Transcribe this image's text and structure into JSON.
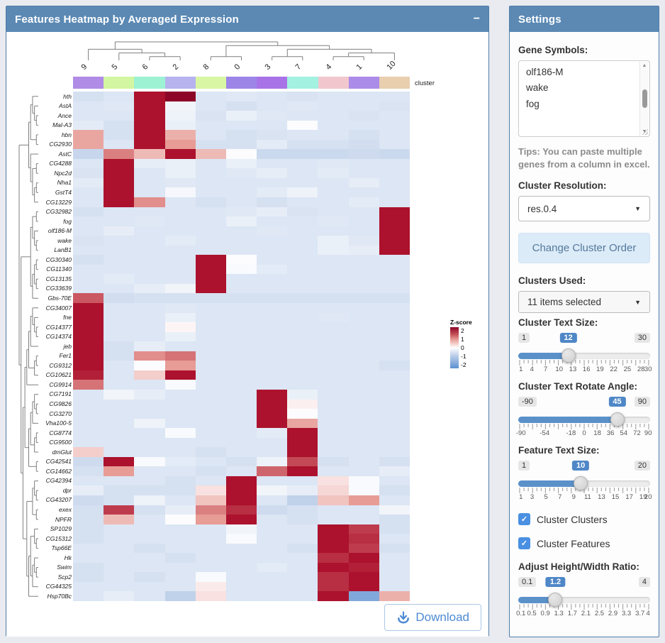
{
  "heatmap_panel": {
    "title": "Features Heatmap by Averaged Expression",
    "collapse_label": "−",
    "cluster_bar_label": "cluster",
    "download_label": "Download",
    "legend": {
      "title": "Z-score",
      "ticks": [
        "2",
        "1",
        "0",
        "-1",
        "-2"
      ]
    }
  },
  "chart_data": {
    "type": "heatmap",
    "title": "Features Heatmap by Averaged Expression",
    "legend_title": "Z-score",
    "zlim": [
      -2,
      2
    ],
    "columns": [
      "9",
      "5",
      "6",
      "2",
      "8",
      "0",
      "3",
      "7",
      "4",
      "1",
      "10"
    ],
    "column_colors": [
      "#b18ce6",
      "#d2f6a1",
      "#9df2d3",
      "#b6b3ef",
      "#d8f6a4",
      "#9d85e8",
      "#a973e8",
      "#a3f1e0",
      "#f1c7cd",
      "#ab8ce8",
      "#e9cfae"
    ],
    "rows": [
      "hth",
      "AstA",
      "Ance",
      "Mal-A3",
      "hbn",
      "CG2930",
      "AstC",
      "CG4288",
      "Npc2d",
      "Nha1",
      "GstT4",
      "CG13229",
      "CG32982",
      "fog",
      "olf186-M",
      "wake",
      "LanB1",
      "CG30340",
      "CG11340",
      "CG13135",
      "CG33639",
      "Gbs-70E",
      "CG34007",
      "fne",
      "CG14377",
      "CG14374",
      "jeb",
      "Fer1",
      "CG9312",
      "CG10621",
      "CG9914",
      "CG7191",
      "CG9826",
      "CG3270",
      "Vha100-5",
      "CG8774",
      "CG9500",
      "dmGlut",
      "CG42541",
      "CG14662",
      "CG42394",
      "dpr",
      "CG43207",
      "exex",
      "NPFR",
      "SP1029",
      "CG15312",
      "Tsp66E",
      "Hk",
      "Swim",
      "Scp2",
      "CG44325",
      "Hsp70Bc"
    ],
    "values": [
      [
        -0.6,
        -0.5,
        2,
        2.4,
        -0.5,
        -0.45,
        -0.5,
        -0.55,
        -0.5,
        -0.5,
        -0.5
      ],
      [
        -0.5,
        -0.45,
        2,
        -0.2,
        -0.5,
        -0.6,
        -0.5,
        -0.45,
        -0.5,
        -0.5,
        -0.55
      ],
      [
        -0.5,
        -0.5,
        2,
        -0.25,
        -0.55,
        -0.3,
        -0.45,
        -0.5,
        -0.5,
        -0.55,
        -0.5
      ],
      [
        -0.4,
        -0.6,
        2,
        -0.3,
        -0.5,
        -0.5,
        -0.5,
        -0.05,
        -0.5,
        -0.5,
        -0.5
      ],
      [
        0.9,
        -0.6,
        2,
        0.8,
        -0.5,
        -0.6,
        -0.55,
        -0.5,
        -0.5,
        -0.6,
        -0.5
      ],
      [
        0.9,
        -0.5,
        2,
        1.0,
        -0.6,
        -0.6,
        -0.4,
        -0.6,
        -0.6,
        -0.65,
        -0.5
      ],
      [
        -0.8,
        1.2,
        0.7,
        2,
        0.7,
        -0.05,
        -0.75,
        -0.75,
        -0.75,
        -0.7,
        -0.75
      ],
      [
        -0.5,
        2,
        -0.35,
        -0.3,
        -0.5,
        -0.3,
        -0.5,
        -0.5,
        -0.45,
        -0.5,
        -0.5
      ],
      [
        -0.55,
        2,
        -0.5,
        -0.3,
        -0.5,
        -0.45,
        -0.35,
        -0.5,
        -0.4,
        -0.5,
        -0.5
      ],
      [
        -0.4,
        2,
        -0.5,
        -0.45,
        -0.5,
        -0.5,
        -0.5,
        -0.5,
        -0.5,
        -0.35,
        -0.5
      ],
      [
        -0.5,
        2,
        -0.5,
        -0.15,
        -0.5,
        -0.5,
        -0.4,
        -0.25,
        -0.5,
        -0.5,
        -0.5
      ],
      [
        -0.5,
        2,
        1.1,
        -0.5,
        -0.6,
        -0.5,
        -0.6,
        -0.5,
        -0.5,
        -0.4,
        -0.5
      ],
      [
        -0.6,
        -0.5,
        -0.5,
        -0.5,
        -0.5,
        -0.45,
        -0.35,
        -0.55,
        -0.5,
        -0.5,
        2
      ],
      [
        -0.5,
        -0.5,
        -0.45,
        -0.5,
        -0.5,
        -0.3,
        -0.5,
        -0.5,
        -0.45,
        -0.5,
        2
      ],
      [
        -0.5,
        -0.35,
        -0.5,
        -0.5,
        -0.5,
        -0.5,
        -0.45,
        -0.5,
        -0.5,
        -0.5,
        2
      ],
      [
        -0.55,
        -0.5,
        -0.5,
        -0.4,
        -0.5,
        -0.5,
        -0.5,
        -0.5,
        -0.3,
        -0.45,
        2
      ],
      [
        -0.5,
        -0.5,
        -0.5,
        -0.5,
        -0.5,
        -0.5,
        -0.5,
        -0.5,
        -0.3,
        -0.35,
        2
      ],
      [
        -0.6,
        -0.5,
        -0.5,
        -0.5,
        2,
        -0.05,
        -0.5,
        -0.5,
        -0.5,
        -0.5,
        -0.5
      ],
      [
        -0.5,
        -0.5,
        -0.5,
        -0.5,
        2,
        -0.1,
        -0.4,
        -0.5,
        -0.5,
        -0.5,
        -0.5
      ],
      [
        -0.5,
        -0.4,
        -0.5,
        -0.5,
        2,
        -0.5,
        -0.5,
        -0.5,
        -0.5,
        -0.5,
        -0.5
      ],
      [
        -0.5,
        -0.5,
        -0.35,
        -0.2,
        2,
        -0.5,
        -0.5,
        -0.5,
        -0.5,
        -0.5,
        -0.5
      ],
      [
        1.5,
        -0.65,
        -0.6,
        -0.6,
        -0.6,
        -0.6,
        -0.6,
        -0.6,
        -0.6,
        -0.6,
        -0.6
      ],
      [
        2,
        -0.5,
        -0.5,
        -0.45,
        -0.5,
        -0.5,
        -0.5,
        -0.5,
        -0.5,
        -0.5,
        -0.5
      ],
      [
        2,
        -0.5,
        -0.5,
        -0.3,
        -0.5,
        -0.5,
        -0.5,
        -0.5,
        -0.45,
        -0.5,
        -0.5
      ],
      [
        2,
        -0.5,
        -0.5,
        0.1,
        -0.5,
        -0.5,
        -0.5,
        -0.5,
        -0.5,
        -0.5,
        -0.5
      ],
      [
        2,
        -0.5,
        -0.5,
        -0.3,
        -0.5,
        -0.5,
        -0.5,
        -0.5,
        -0.5,
        -0.5,
        -0.5
      ],
      [
        2,
        -0.6,
        -0.35,
        -0.5,
        -0.5,
        -0.5,
        -0.5,
        -0.5,
        -0.5,
        -0.5,
        -0.5
      ],
      [
        2,
        -0.6,
        1.1,
        1.3,
        -0.5,
        -0.5,
        -0.5,
        -0.5,
        -0.5,
        -0.5,
        -0.5
      ],
      [
        2,
        -0.5,
        -0.05,
        1.0,
        -0.5,
        -0.5,
        -0.5,
        -0.5,
        -0.5,
        -0.5,
        -0.6
      ],
      [
        1.9,
        -0.5,
        0.5,
        2,
        -0.5,
        -0.5,
        -0.5,
        -0.5,
        -0.5,
        -0.5,
        -0.5
      ],
      [
        1.3,
        -0.5,
        -0.5,
        -0.1,
        -0.5,
        -0.5,
        -0.5,
        -0.5,
        -0.5,
        -0.5,
        -0.5
      ],
      [
        -0.5,
        -0.2,
        -0.35,
        -0.5,
        -0.5,
        -0.5,
        2,
        -0.3,
        -0.5,
        -0.5,
        -0.5
      ],
      [
        -0.5,
        -0.5,
        -0.5,
        -0.5,
        -0.5,
        -0.5,
        2,
        0.15,
        -0.5,
        -0.5,
        -0.5
      ],
      [
        -0.5,
        -0.5,
        -0.5,
        -0.5,
        -0.5,
        -0.5,
        2,
        -0.05,
        -0.5,
        -0.5,
        -0.5
      ],
      [
        -0.5,
        -0.5,
        -0.25,
        -0.5,
        -0.5,
        -0.5,
        2,
        0.9,
        -0.5,
        -0.5,
        -0.5
      ],
      [
        -0.5,
        -0.5,
        -0.5,
        -0.1,
        -0.5,
        -0.5,
        -0.4,
        2,
        -0.5,
        -0.5,
        -0.5
      ],
      [
        -0.5,
        -0.5,
        -0.5,
        -0.5,
        -0.5,
        -0.5,
        -0.5,
        2,
        -0.5,
        -0.5,
        -0.5
      ],
      [
        0.5,
        -0.5,
        -0.5,
        -0.5,
        -0.6,
        -0.5,
        -0.5,
        2,
        -0.5,
        -0.5,
        -0.5
      ],
      [
        -0.7,
        2,
        -0.1,
        -0.4,
        -0.5,
        -0.6,
        -0.25,
        1.6,
        -0.6,
        -0.5,
        -0.6
      ],
      [
        -0.6,
        1.0,
        -0.5,
        -0.5,
        -0.6,
        -0.5,
        1.4,
        2,
        -0.5,
        -0.5,
        -0.35
      ],
      [
        -0.5,
        -0.5,
        -0.5,
        -0.6,
        -0.5,
        2,
        -0.5,
        -0.5,
        0.3,
        -0.1,
        -0.5
      ],
      [
        -0.35,
        -0.6,
        -0.6,
        -0.6,
        0.3,
        2,
        -0.2,
        -0.35,
        0.4,
        -0.1,
        -0.6
      ],
      [
        -0.7,
        -0.6,
        -0.25,
        -0.5,
        0.6,
        2,
        -0.5,
        -0.9,
        0.6,
        1.0,
        -0.5
      ],
      [
        -0.6,
        1.7,
        -0.6,
        -0.35,
        1.2,
        1.8,
        -0.7,
        -0.6,
        -0.5,
        -0.5,
        -0.2
      ],
      [
        -0.6,
        0.7,
        -0.5,
        -0.05,
        1.0,
        2,
        -0.5,
        -0.6,
        -0.5,
        -0.5,
        -0.6
      ],
      [
        -0.6,
        -0.5,
        -0.5,
        -0.5,
        -0.5,
        -0.2,
        -0.5,
        -0.5,
        2,
        1.7,
        -0.6
      ],
      [
        -0.6,
        -0.5,
        -0.5,
        -0.5,
        -0.5,
        -0.1,
        -0.5,
        -0.5,
        2,
        1.8,
        -0.5
      ],
      [
        -0.5,
        -0.5,
        -0.6,
        -0.5,
        -0.5,
        -0.5,
        -0.5,
        -0.6,
        2,
        1.7,
        -0.6
      ],
      [
        -0.5,
        -0.5,
        -0.5,
        -0.6,
        -0.5,
        -0.5,
        -0.5,
        -0.5,
        1.8,
        2,
        -0.5
      ],
      [
        -0.6,
        -0.5,
        -0.5,
        -0.5,
        -0.5,
        -0.5,
        -0.4,
        -0.5,
        2,
        1.9,
        -0.5
      ],
      [
        -0.6,
        -0.5,
        -0.6,
        -0.5,
        -0.1,
        -0.5,
        -0.5,
        -0.5,
        1.8,
        2,
        -0.5
      ],
      [
        -0.5,
        -0.5,
        -0.5,
        -0.5,
        0.2,
        -0.5,
        -0.5,
        -0.5,
        1.8,
        2,
        -0.5
      ],
      [
        -0.5,
        -0.35,
        -0.5,
        -0.9,
        0.3,
        -0.5,
        -0.5,
        -0.5,
        2,
        -1.6,
        0.8
      ]
    ],
    "col_tree": [
      [
        0,
        [
          1,
          [
            2,
            3
          ]
        ]
      ],
      [
        [
          4,
          5
        ],
        [
          [
            6,
            7
          ],
          [
            [
              8,
              9
            ],
            10
          ]
        ]
      ]
    ],
    "row_tree": [
      [
        [
          [
            0,
            [
              1,
              [
                2,
                3
              ]
            ]
          ],
          [
            4,
            5
          ]
        ],
        [
          6,
          [
            [
              7,
              8
            ],
            [
              [
                9,
                10
              ],
              11
            ]
          ]
        ]
      ],
      [
        [
          [
            [
              12,
              13
            ],
            [
              14,
              [
                15,
                16
              ]
            ]
          ],
          [
            [
              [
                17,
                18
              ],
              [
                19,
                20
              ]
            ],
            21
          ]
        ],
        [
          [
            [
              [
                [
                  [
                    22,
                    [
                      23,
                      [
                        24,
                        25
                      ]
                    ]
                  ],
                  26
                ],
                [
                  [
                    27,
                    28
                  ],
                  29
                ]
              ],
              30
            ],
            [
              [
                [
                  [
                    31,
                    [
                      32,
                      33
                    ]
                  ],
                  34
                ],
                [
                  [
                    35,
                    36
                  ],
                  37
                ]
              ],
              [
                38,
                39
              ]
            ]
          ],
          [
            [
              [
                40,
                [
                  41,
                  42
                ]
              ],
              [
                43,
                44
              ]
            ],
            [
              [
                [
                  45,
                  [
                    46,
                    47
                  ]
                ],
                [
                  [
                    48,
                    [
                      49,
                      50
                    ]
                  ],
                  51
                ]
              ],
              52
            ]
          ]
        ]
      ]
    ]
  },
  "settings": {
    "title": "Settings",
    "gene_symbols_label": "Gene Symbols:",
    "gene_symbols_lines": [
      "olf186-M",
      "wake",
      "fog"
    ],
    "tips": "Tips: You can paste multiple genes from a column in excel.",
    "cluster_resolution_label": "Cluster Resolution:",
    "cluster_resolution_value": "res.0.4",
    "change_cluster_order_label": "Change Cluster Order",
    "clusters_used_label": "Clusters Used:",
    "clusters_used_value": "11 items selected",
    "sliders": [
      {
        "id": "cluster-text-size",
        "label": "Cluster Text Size:",
        "min": "1",
        "max": "30",
        "value": "12",
        "ticks": [
          "1",
          "4",
          "7",
          "10",
          "13",
          "16",
          "19",
          "22",
          "25",
          "28",
          "30"
        ]
      },
      {
        "id": "cluster-text-rotate-angle",
        "label": "Cluster Text Rotate Angle:",
        "min": "-90",
        "max": "90",
        "value": "45",
        "ticks": [
          "-90",
          "-54",
          "-18",
          "0",
          "18",
          "36",
          "54",
          "72",
          "90"
        ]
      },
      {
        "id": "feature-text-size",
        "label": "Feature Text Size:",
        "min": "1",
        "max": "20",
        "value": "10",
        "ticks": [
          "1",
          "3",
          "5",
          "7",
          "9",
          "11",
          "13",
          "15",
          "17",
          "19",
          "20"
        ]
      },
      {
        "id": "adjust-height-width-ratio",
        "label": "Adjust Height/Width Ratio:",
        "min": "0.1",
        "max": "4",
        "value": "1.2",
        "ticks": [
          "0.1",
          "0.5",
          "0.9",
          "1.3",
          "1.7",
          "2.1",
          "2.5",
          "2.9",
          "3.3",
          "3.7",
          "4"
        ]
      }
    ],
    "checkboxes": [
      {
        "label": "Cluster Clusters",
        "checked": true
      },
      {
        "label": "Cluster Features",
        "checked": true
      }
    ],
    "colors": {
      "header": "#5b89b4",
      "slider_fill": "#5a91c9",
      "checkbox": "#4a90e2",
      "accent_red": "#ac122d",
      "accent_blue": "#5c90d2"
    }
  }
}
